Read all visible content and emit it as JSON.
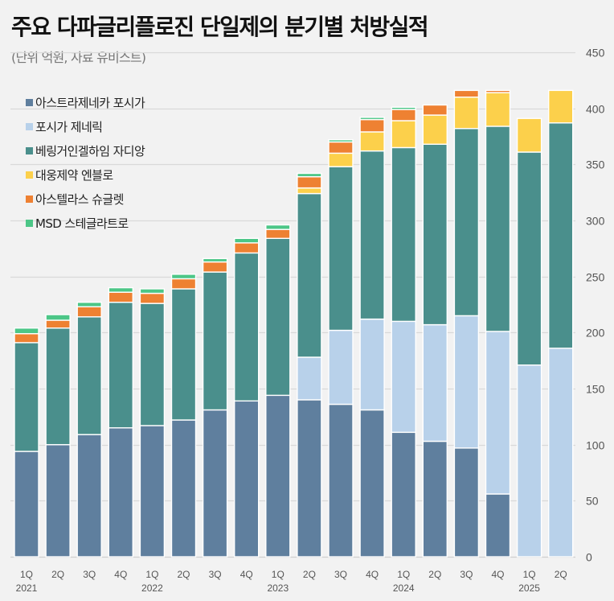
{
  "header": {
    "title": "주요 다파글리플로진 단일제의 분기별 처방실적",
    "subtitle": "(단위 억원, 자료 유비스트)"
  },
  "chart_data": {
    "type": "bar",
    "stacked": true,
    "title": "주요 다파글리플로진 단일제의 분기별 처방실적",
    "subtitle": "(단위 억원, 자료 유비스트)",
    "xlabel": "",
    "ylabel": "",
    "ylim": [
      0,
      450
    ],
    "yticks": [
      0,
      50,
      100,
      150,
      200,
      250,
      300,
      350,
      400,
      450
    ],
    "y_axis_side": "right",
    "grid": true,
    "legend_position": "top-left",
    "categories": [
      "1Q",
      "2Q",
      "3Q",
      "4Q",
      "1Q",
      "2Q",
      "3Q",
      "4Q",
      "1Q",
      "2Q",
      "3Q",
      "4Q",
      "1Q",
      "2Q",
      "3Q",
      "4Q",
      "1Q",
      "2Q"
    ],
    "year_labels": [
      "2021",
      "",
      "",
      "",
      "2022",
      "",
      "",
      "",
      "2023",
      "",
      "",
      "",
      "2024",
      "",
      "",
      "",
      "2025",
      ""
    ],
    "series": [
      {
        "name": "아스트라제네카 포시가",
        "color": "#5f7f9e",
        "values": [
          94,
          100,
          109,
          115,
          117,
          122,
          131,
          139,
          144,
          140,
          136,
          131,
          111,
          103,
          97,
          56,
          0,
          0
        ]
      },
      {
        "name": "포시가 제네릭",
        "color": "#b8d1ea",
        "values": [
          0,
          0,
          0,
          0,
          0,
          0,
          0,
          0,
          0,
          38,
          66,
          81,
          99,
          104,
          118,
          145,
          171,
          186
        ]
      },
      {
        "name": "베링거인겔하임 자디앙",
        "color": "#4a8f8c",
        "values": [
          97,
          104,
          105,
          112,
          109,
          117,
          123,
          132,
          140,
          146,
          146,
          150,
          155,
          161,
          167,
          183,
          190,
          201
        ]
      },
      {
        "name": "대웅제약 엔블로",
        "color": "#fcd04b",
        "values": [
          0,
          0,
          0,
          0,
          0,
          0,
          0,
          0,
          0,
          5,
          12,
          17,
          24,
          26,
          28,
          30,
          30,
          29
        ]
      },
      {
        "name": "아스텔라스 슈글렛",
        "color": "#ee8132",
        "values": [
          8,
          7,
          9,
          9,
          9,
          9,
          9,
          9,
          8,
          10,
          10,
          11,
          10,
          9,
          6,
          2,
          0,
          0
        ]
      },
      {
        "name": "MSD 스테글라트로",
        "color": "#4cc687",
        "values": [
          5,
          5,
          4,
          4,
          4,
          4,
          3,
          4,
          4,
          3,
          2,
          2,
          2,
          0,
          0,
          0,
          0,
          0
        ]
      }
    ]
  }
}
